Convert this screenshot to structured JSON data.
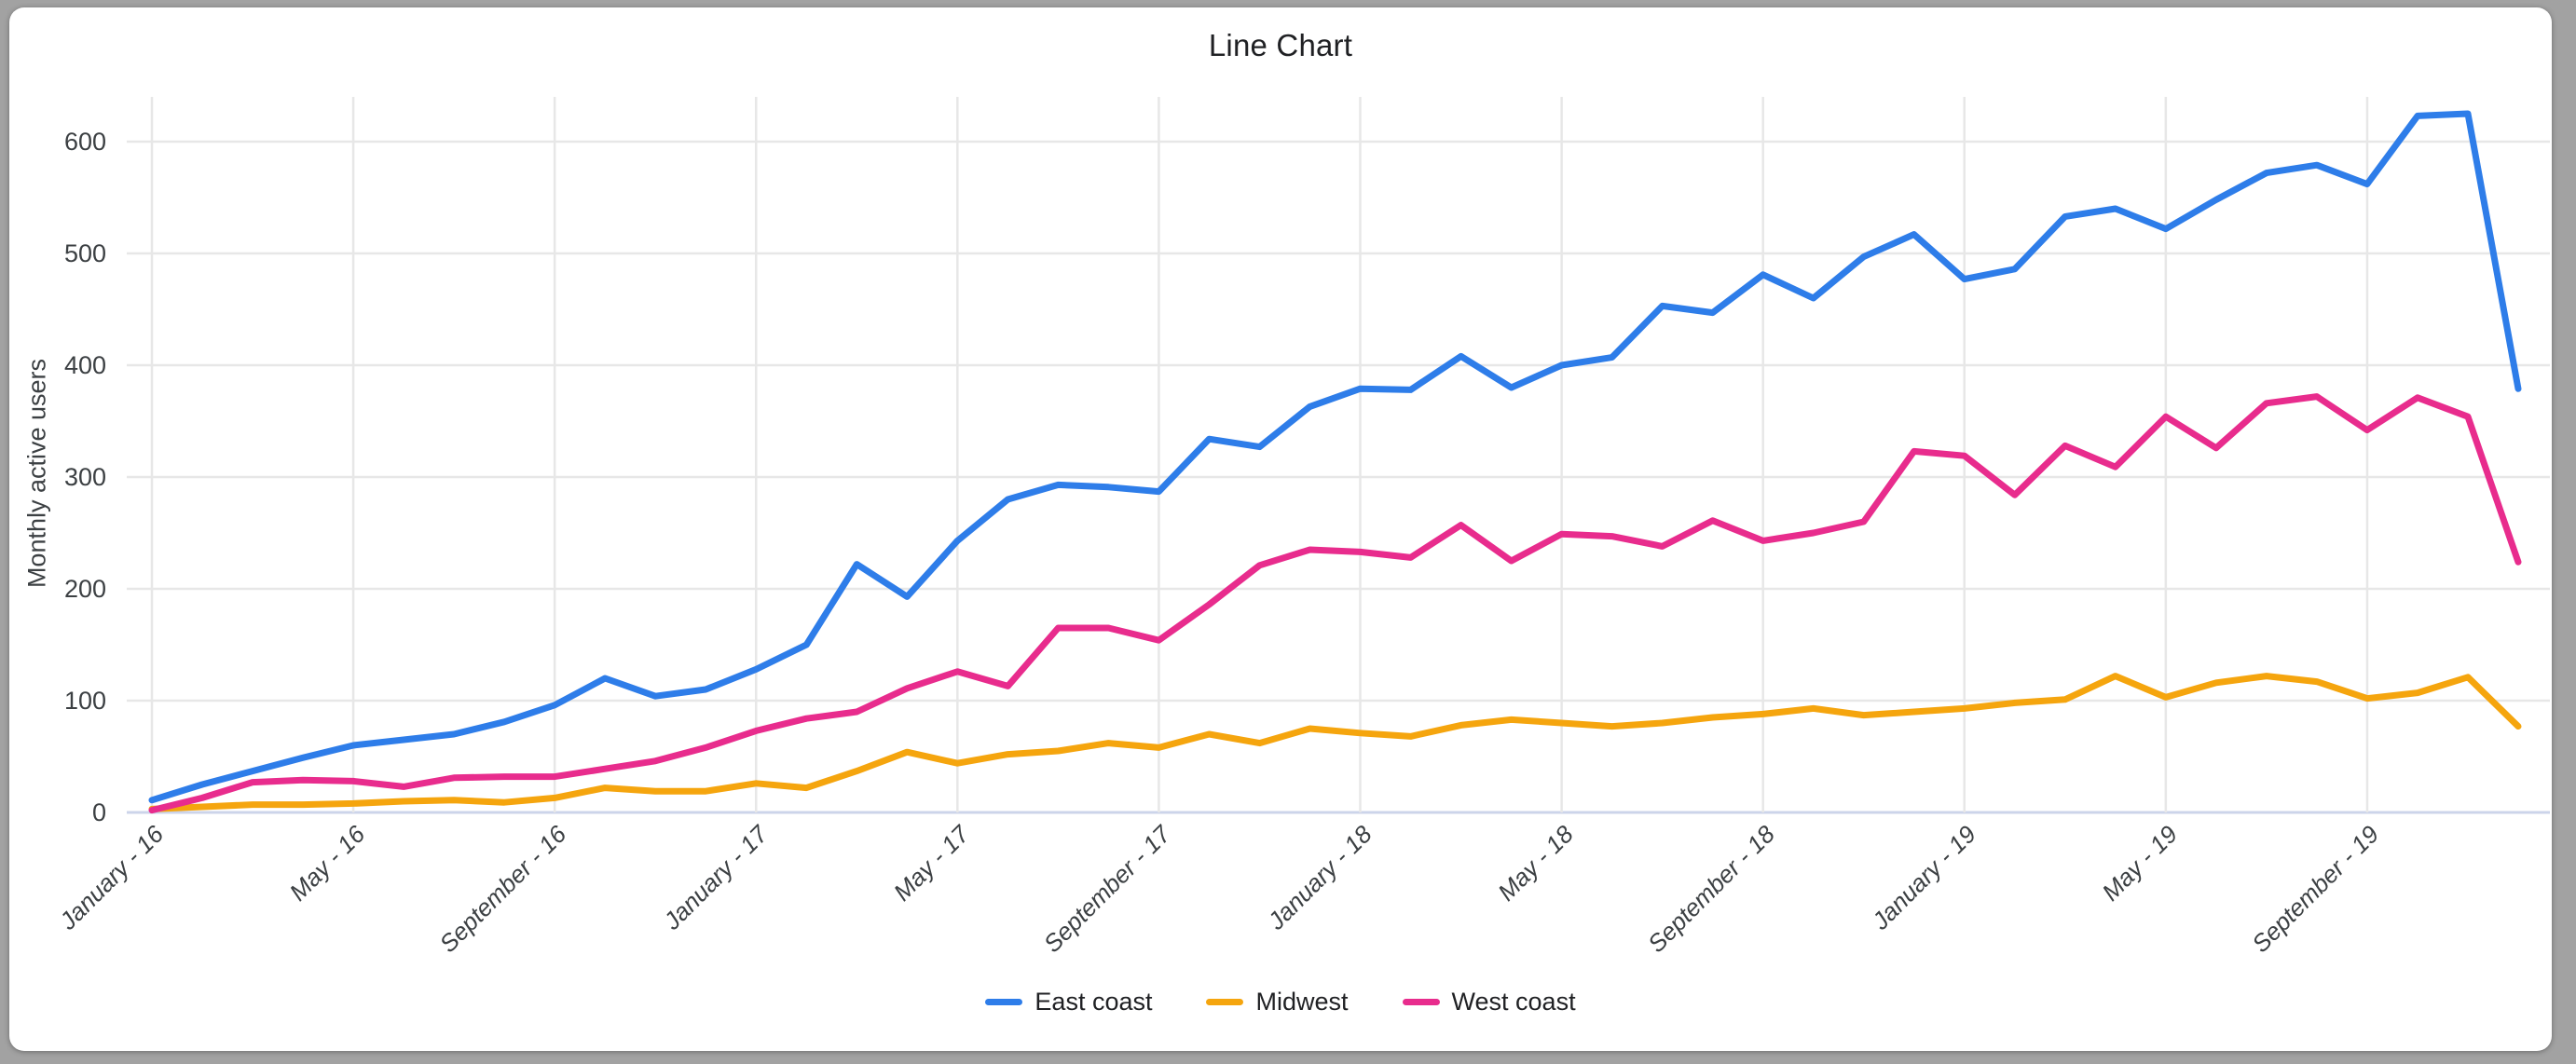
{
  "title": "Line Chart",
  "y_axis": {
    "label": "Monthly active users",
    "tick_values": [
      0,
      100,
      200,
      300,
      400,
      500,
      600
    ]
  },
  "x_axis": {
    "tick_labels": [
      "January - 16",
      "May - 16",
      "September - 16",
      "January - 17",
      "May - 17",
      "September - 17",
      "January - 18",
      "May - 18",
      "September - 18",
      "January - 19",
      "May - 19",
      "September - 19"
    ],
    "months_per_tick": 4
  },
  "legend": {
    "items": [
      {
        "label": "East coast",
        "color": "#2e7de9"
      },
      {
        "label": "Midwest",
        "color": "#f5a50e"
      },
      {
        "label": "West coast",
        "color": "#e82c8d"
      }
    ]
  },
  "colors": {
    "background": "#a2a2a2",
    "card": "#ffffff",
    "gridline": "#e7e7e7",
    "baseline": "#ccd4ea",
    "tick_text": "#3c4043",
    "title_text": "#202124"
  },
  "chart_data": {
    "type": "line",
    "x_months": 48,
    "x_range": [
      "January 2016",
      "December 2019"
    ],
    "x_tick_labels": [
      "January - 16",
      "May - 16",
      "September - 16",
      "January - 17",
      "May - 17",
      "September - 17",
      "January - 18",
      "May - 18",
      "September - 18",
      "January - 19",
      "May - 19",
      "September - 19"
    ],
    "months_per_tick": 4,
    "ylabel": "Monthly active users",
    "ylim": [
      0,
      650
    ],
    "grid": true,
    "legend_position": "bottom",
    "series": [
      {
        "name": "East coast",
        "color": "#2e7de9",
        "values": [
          11,
          25,
          37,
          49,
          60,
          65,
          70,
          81,
          96,
          120,
          104,
          110,
          128,
          150,
          222,
          193,
          243,
          280,
          293,
          291,
          287,
          334,
          327,
          363,
          379,
          378,
          408,
          380,
          400,
          407,
          453,
          447,
          481,
          460,
          497,
          517,
          477,
          486,
          533,
          540,
          522,
          548,
          572,
          579,
          562,
          623,
          625,
          379
        ]
      },
      {
        "name": "Midwest",
        "color": "#f5a50e",
        "values": [
          3,
          5,
          7,
          7,
          8,
          10,
          11,
          9,
          13,
          22,
          19,
          19,
          26,
          22,
          37,
          54,
          44,
          52,
          55,
          62,
          58,
          70,
          62,
          75,
          71,
          68,
          78,
          83,
          80,
          77,
          80,
          85,
          88,
          93,
          87,
          90,
          93,
          98,
          101,
          122,
          103,
          116,
          122,
          117,
          102,
          107,
          121,
          77
        ]
      },
      {
        "name": "West coast",
        "color": "#e82c8d",
        "values": [
          2,
          13,
          27,
          29,
          28,
          23,
          31,
          32,
          32,
          39,
          46,
          58,
          73,
          84,
          90,
          111,
          126,
          113,
          165,
          165,
          154,
          186,
          221,
          235,
          233,
          228,
          257,
          225,
          249,
          247,
          238,
          261,
          243,
          250,
          260,
          323,
          319,
          284,
          328,
          309,
          354,
          326,
          366,
          372,
          342,
          371,
          354,
          224
        ]
      }
    ]
  }
}
